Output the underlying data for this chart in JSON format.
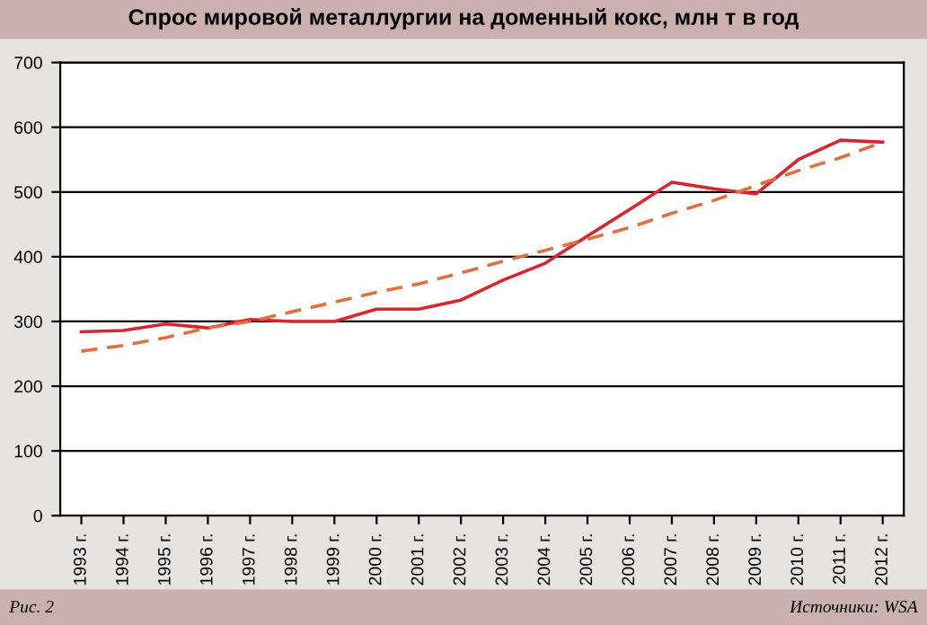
{
  "chart_data": {
    "type": "line",
    "title": "Спрос мировой металлургии на доменный кокс, млн т в год",
    "categories": [
      "1993 г.",
      "1994 г.",
      "1995 г.",
      "1996 г.",
      "1997 г.",
      "1998 г.",
      "1999 г.",
      "2000 г.",
      "2001 г.",
      "2002 г.",
      "2003 г.",
      "2004 г.",
      "2005 г.",
      "2006 г.",
      "2007 г.",
      "2008 г.",
      "2009 г.",
      "2010 г.",
      "2011 г.",
      "2012 г."
    ],
    "series": [
      {
        "color": "#d9262e",
        "line_style": "solid",
        "values": [
          284,
          286,
          296,
          290,
          303,
          300,
          300,
          319,
          319,
          333,
          364,
          390,
          432,
          473,
          515,
          505,
          497,
          550,
          580,
          577
        ]
      },
      {
        "color": "#e07040",
        "line_style": "dashed",
        "values": [
          254,
          263,
          275,
          290,
          300,
          315,
          330,
          345,
          358,
          375,
          393,
          410,
          427,
          445,
          467,
          487,
          510,
          533,
          553,
          577
        ]
      }
    ],
    "ylim": [
      0,
      700
    ],
    "yticks": [
      0,
      100,
      200,
      300,
      400,
      500,
      600,
      700
    ],
    "grid": "y",
    "legend": false,
    "marker": "none",
    "annotations": [
      "Рис. 2",
      "Источники: WSA"
    ]
  }
}
